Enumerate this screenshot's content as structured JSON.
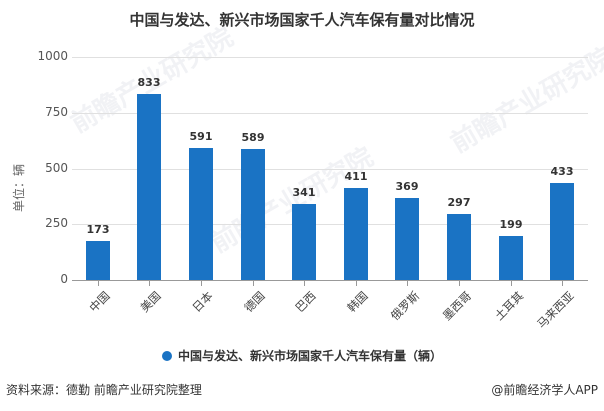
{
  "title": "中国与发达、新兴市场国家千人汽车保有量对比情况",
  "legend": {
    "label": "中国与发达、新兴市场国家千人汽车保有量（辆）",
    "color": "#1a73c4"
  },
  "footer": {
    "source": "资料来源：德勤 前瞻产业研究院整理",
    "credit": "@前瞻经济学人APP"
  },
  "watermark": "前瞻产业研究院",
  "chart_data": {
    "type": "bar",
    "title": "中国与发达、新兴市场国家千人汽车保有量对比情况",
    "xlabel": "",
    "ylabel": "单位：辆",
    "ylim": [
      0,
      1000
    ],
    "yticks": [
      0,
      250,
      500,
      750,
      1000
    ],
    "grid": true,
    "legend_position": "bottom",
    "categories": [
      "中国",
      "美国",
      "日本",
      "德国",
      "巴西",
      "韩国",
      "俄罗斯",
      "墨西哥",
      "土耳其",
      "马来西亚"
    ],
    "series": [
      {
        "name": "中国与发达、新兴市场国家千人汽车保有量（辆）",
        "values": [
          173,
          833,
          591,
          589,
          341,
          411,
          369,
          297,
          199,
          433
        ],
        "color": "#1a73c4"
      }
    ]
  }
}
